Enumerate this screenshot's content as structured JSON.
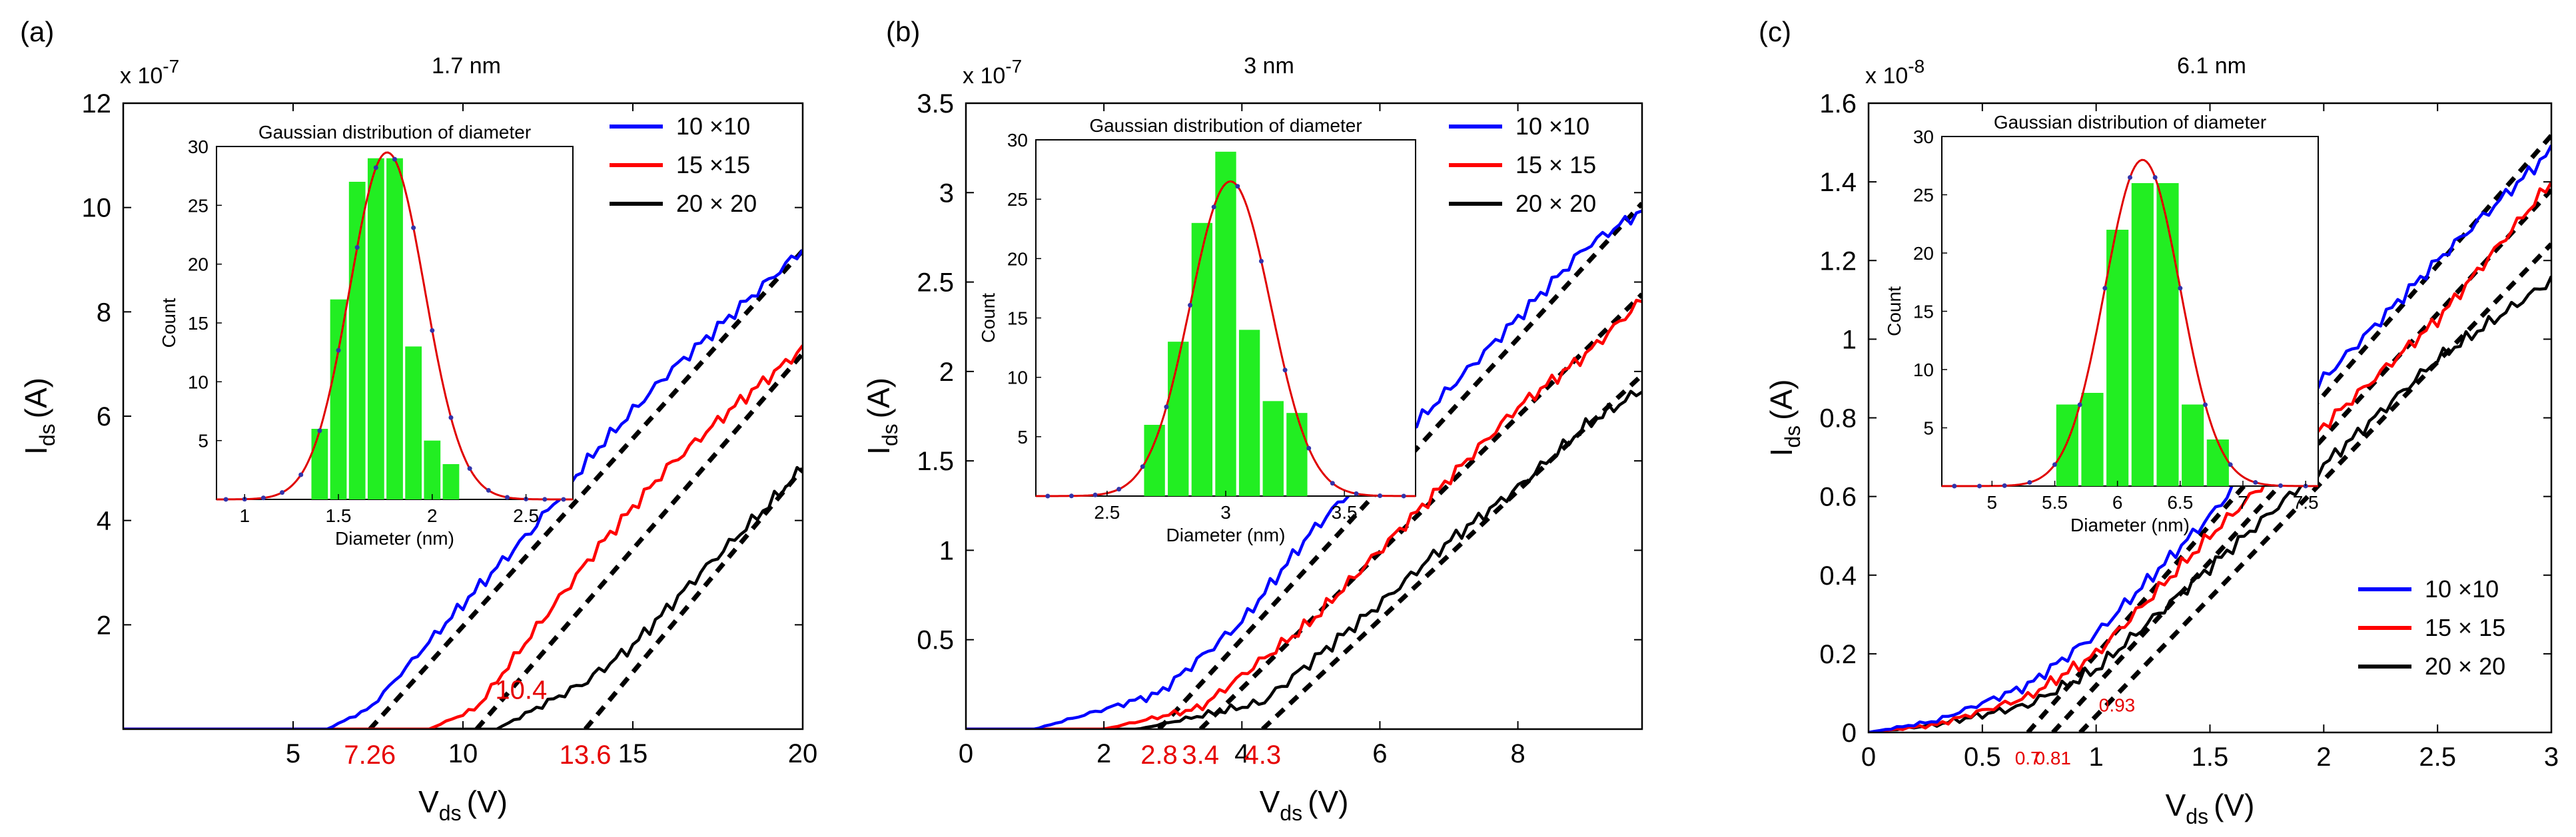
{
  "chart_data": [
    {
      "type": "line",
      "panel_label": "(a)",
      "title": "1.7 nm",
      "y_multiplier": "x 10",
      "y_exponent": "-7",
      "xlabel": "V",
      "xlabel_sub": "ds",
      "xlabel_unit": "(V)",
      "ylabel": "I",
      "ylabel_sub": "ds",
      "ylabel_unit": "(A)",
      "xlim": [
        0,
        20
      ],
      "ylim": [
        0,
        12
      ],
      "x_ticks": [
        5,
        10,
        15,
        20
      ],
      "x_tick_labels": [
        "5",
        "10",
        "15",
        "20"
      ],
      "y_ticks": [
        2,
        4,
        6,
        8,
        10,
        12
      ],
      "y_tick_labels": [
        "2",
        "4",
        "6",
        "8",
        "10",
        "12"
      ],
      "legend_position": "top-right",
      "series": [
        {
          "name": "10 ×10",
          "color": "#0000ff",
          "onset": 6.0,
          "points": [
            [
              0,
              0
            ],
            [
              6.0,
              0
            ],
            [
              7.26,
              0.4
            ],
            [
              10,
              2.4
            ],
            [
              12,
              3.8
            ],
            [
              14,
              5.4
            ],
            [
              16,
              6.8
            ],
            [
              18,
              8.0
            ],
            [
              20,
              9.2
            ]
          ]
        },
        {
          "name": "15 ×15",
          "color": "#ff0000",
          "onset": 9.0,
          "points": [
            [
              0,
              0
            ],
            [
              9.0,
              0
            ],
            [
              10.4,
              0.4
            ],
            [
              12,
              1.8
            ],
            [
              14,
              3.5
            ],
            [
              16,
              5.0
            ],
            [
              18,
              6.2
            ],
            [
              20,
              7.3
            ]
          ]
        },
        {
          "name": "20 × 20",
          "color": "#000000",
          "onset": 11.0,
          "points": [
            [
              0,
              0
            ],
            [
              11.0,
              0
            ],
            [
              13.6,
              0.9
            ],
            [
              15,
              1.6
            ],
            [
              17,
              3.0
            ],
            [
              19,
              4.3
            ],
            [
              20,
              5.0
            ]
          ]
        }
      ],
      "fit_lines": [
        {
          "x0": 7.26,
          "x1": 20,
          "slope": 0.72
        },
        {
          "x0": 10.4,
          "x1": 20,
          "slope": 0.75
        },
        {
          "x0": 13.6,
          "x1": 20,
          "slope": 0.78
        }
      ],
      "annotations": [
        {
          "text": "7.26",
          "x": 7.26,
          "position": "below-axis"
        },
        {
          "text": "10.4",
          "x": 10.4,
          "y": 0.4
        },
        {
          "text": "13.6",
          "x": 13.6,
          "position": "below-axis"
        }
      ],
      "inset": {
        "type": "bar",
        "title": "Gaussian distribution of diameter",
        "xlabel": "Diameter (nm)",
        "ylabel": "Count",
        "xlim": [
          0.85,
          2.75
        ],
        "ylim": [
          0,
          30
        ],
        "x_ticks": [
          1,
          1.5,
          2,
          2.5
        ],
        "x_tick_labels": [
          "1",
          "1.5",
          "2",
          "2.5"
        ],
        "y_ticks": [
          5,
          10,
          15,
          20,
          25,
          30
        ],
        "y_tick_labels": [
          "5",
          "10",
          "15",
          "20",
          "25",
          "30"
        ],
        "bin_width": 0.1,
        "bars": [
          [
            1.4,
            6
          ],
          [
            1.5,
            17
          ],
          [
            1.6,
            27
          ],
          [
            1.7,
            29
          ],
          [
            1.8,
            29
          ],
          [
            1.9,
            13
          ],
          [
            2.0,
            5
          ],
          [
            2.1,
            3
          ]
        ],
        "gaussian": {
          "mean": 1.76,
          "sigma": 0.2,
          "amp": 29.5
        }
      }
    },
    {
      "type": "line",
      "panel_label": "(b)",
      "title": "3 nm",
      "y_multiplier": "x 10",
      "y_exponent": "-7",
      "xlabel": "V",
      "xlabel_sub": "ds",
      "xlabel_unit": "(V)",
      "ylabel": "I",
      "ylabel_sub": "ds",
      "ylabel_unit": "(A)",
      "xlim": [
        0,
        9.8
      ],
      "ylim": [
        0,
        3.5
      ],
      "x_ticks": [
        0,
        2,
        4,
        6,
        8
      ],
      "x_tick_labels": [
        "0",
        "2",
        "4",
        "6",
        "8"
      ],
      "y_ticks": [
        0.5,
        1,
        1.5,
        2,
        2.5,
        3,
        3.5
      ],
      "y_tick_labels": [
        "0.5",
        "1",
        "1.5",
        "2",
        "2.5",
        "3",
        "3.5"
      ],
      "legend_position": "top-right",
      "series": [
        {
          "name": "10 ×10",
          "color": "#0000ff",
          "onset": 1.0,
          "points": [
            [
              0,
              0
            ],
            [
              1.0,
              0
            ],
            [
              2.8,
              0.2
            ],
            [
              4,
              0.6
            ],
            [
              5,
              1.1
            ],
            [
              6,
              1.5
            ],
            [
              7,
              1.9
            ],
            [
              8,
              2.3
            ],
            [
              9,
              2.7
            ],
            [
              9.8,
              2.9
            ]
          ]
        },
        {
          "name": "15 × 15",
          "color": "#ff0000",
          "onset": 2.0,
          "points": [
            [
              0,
              0
            ],
            [
              2.0,
              0
            ],
            [
              3.4,
              0.12
            ],
            [
              5,
              0.6
            ],
            [
              6,
              1.0
            ],
            [
              7,
              1.4
            ],
            [
              8,
              1.8
            ],
            [
              9,
              2.1
            ],
            [
              9.8,
              2.4
            ]
          ]
        },
        {
          "name": "20 × 20",
          "color": "#000000",
          "onset": 2.5,
          "points": [
            [
              0,
              0
            ],
            [
              2.5,
              0
            ],
            [
              4.3,
              0.15
            ],
            [
              6,
              0.7
            ],
            [
              7,
              1.05
            ],
            [
              8,
              1.35
            ],
            [
              9,
              1.7
            ],
            [
              9.8,
              1.9
            ]
          ]
        }
      ],
      "fit_lines": [
        {
          "x0": 2.8,
          "x1": 9.8,
          "slope": 0.42
        },
        {
          "x0": 3.4,
          "x1": 9.8,
          "slope": 0.38
        },
        {
          "x0": 4.3,
          "x1": 9.8,
          "slope": 0.36
        }
      ],
      "annotations": [
        {
          "text": "2.8",
          "x": 2.8,
          "position": "below-axis"
        },
        {
          "text": "3.4",
          "x": 3.4,
          "position": "below-axis"
        },
        {
          "text": "4.3",
          "x": 4.3,
          "position": "below-axis"
        }
      ],
      "inset": {
        "type": "bar",
        "title": "Gaussian distribution of diameter",
        "xlabel": "Diameter (nm)",
        "ylabel": "Count",
        "xlim": [
          2.2,
          3.8
        ],
        "ylim": [
          0,
          30
        ],
        "x_ticks": [
          2.5,
          3,
          3.5
        ],
        "x_tick_labels": [
          "2.5",
          "3",
          "3.5"
        ],
        "y_ticks": [
          5,
          10,
          15,
          20,
          25,
          30
        ],
        "y_tick_labels": [
          "5",
          "10",
          "15",
          "20",
          "25",
          "30"
        ],
        "bin_width": 0.1,
        "bars": [
          [
            2.7,
            6
          ],
          [
            2.8,
            13
          ],
          [
            2.9,
            23
          ],
          [
            3.0,
            29
          ],
          [
            3.1,
            14
          ],
          [
            3.2,
            8
          ],
          [
            3.3,
            7
          ]
        ],
        "gaussian": {
          "mean": 3.02,
          "sigma": 0.17,
          "amp": 26.5
        }
      }
    },
    {
      "type": "line",
      "panel_label": "(c)",
      "title": "6.1 nm",
      "y_multiplier": "x 10",
      "y_exponent": "-8",
      "xlabel": "V",
      "xlabel_sub": "ds",
      "xlabel_unit": "(V)",
      "ylabel": "I",
      "ylabel_sub": "ds",
      "ylabel_unit": "(A)",
      "xlim": [
        0,
        3
      ],
      "ylim": [
        0,
        1.6
      ],
      "x_ticks": [
        0,
        0.5,
        1,
        1.5,
        2,
        2.5,
        3
      ],
      "x_tick_labels": [
        "0",
        "0.5",
        "1",
        "1.5",
        "2",
        "2.5",
        "3"
      ],
      "y_ticks": [
        0,
        0.2,
        0.4,
        0.6,
        0.8,
        1,
        1.2,
        1.4,
        1.6
      ],
      "y_tick_labels": [
        "0",
        "0.2",
        "0.4",
        "0.6",
        "0.8",
        "1",
        "1.2",
        "1.4",
        "1.6"
      ],
      "legend_position": "bottom-right",
      "series": [
        {
          "name": "10 ×10",
          "color": "#0000ff",
          "onset": 0.0,
          "points": [
            [
              0,
              0
            ],
            [
              0.3,
              0.03
            ],
            [
              0.7,
              0.12
            ],
            [
              1.0,
              0.25
            ],
            [
              1.5,
              0.55
            ],
            [
              2.0,
              0.9
            ],
            [
              2.5,
              1.2
            ],
            [
              3.0,
              1.48
            ]
          ]
        },
        {
          "name": "15 × 15",
          "color": "#ff0000",
          "onset": 0.0,
          "points": [
            [
              0,
              0
            ],
            [
              0.3,
              0.02
            ],
            [
              0.7,
              0.09
            ],
            [
              1.0,
              0.2
            ],
            [
              1.5,
              0.5
            ],
            [
              2.0,
              0.78
            ],
            [
              2.5,
              1.05
            ],
            [
              3.0,
              1.4
            ]
          ]
        },
        {
          "name": "20 × 20",
          "color": "#000000",
          "onset": 0.0,
          "points": [
            [
              0,
              0
            ],
            [
              0.3,
              0.02
            ],
            [
              0.7,
              0.07
            ],
            [
              1.0,
              0.16
            ],
            [
              1.5,
              0.42
            ],
            [
              2.0,
              0.68
            ],
            [
              2.5,
              0.95
            ],
            [
              3.0,
              1.15
            ]
          ]
        }
      ],
      "fit_lines": [
        {
          "x0": 0.7,
          "x1": 3.0,
          "slope": 0.66
        },
        {
          "x0": 0.81,
          "x1": 3.0,
          "slope": 0.63
        },
        {
          "x0": 0.93,
          "x1": 3.0,
          "slope": 0.6
        }
      ],
      "annotations": [
        {
          "text": "0.7",
          "x": 0.7,
          "position": "below-axis"
        },
        {
          "text": "0.81",
          "x": 0.81,
          "position": "below-axis"
        },
        {
          "text": "0.93",
          "x": 0.93,
          "y": 0.03
        }
      ],
      "inset": {
        "type": "bar",
        "title": "Gaussian distribution of diameter",
        "xlabel": "Diameter (nm)",
        "ylabel": "Count",
        "xlim": [
          4.6,
          7.6
        ],
        "ylim": [
          0,
          30
        ],
        "x_ticks": [
          5,
          5.5,
          6,
          6.5,
          7,
          7.5
        ],
        "x_tick_labels": [
          "5",
          "5.5",
          "6",
          "6.5",
          "7",
          "7.5"
        ],
        "y_ticks": [
          5,
          10,
          15,
          20,
          25,
          30
        ],
        "y_tick_labels": [
          "5",
          "10",
          "15",
          "20",
          "25",
          "30"
        ],
        "bin_width": 0.2,
        "bars": [
          [
            5.6,
            7
          ],
          [
            5.8,
            8
          ],
          [
            6.0,
            22
          ],
          [
            6.2,
            26
          ],
          [
            6.4,
            26
          ],
          [
            6.6,
            7
          ],
          [
            6.8,
            4
          ]
        ],
        "gaussian": {
          "mean": 6.2,
          "sigma": 0.3,
          "amp": 28
        }
      }
    }
  ]
}
